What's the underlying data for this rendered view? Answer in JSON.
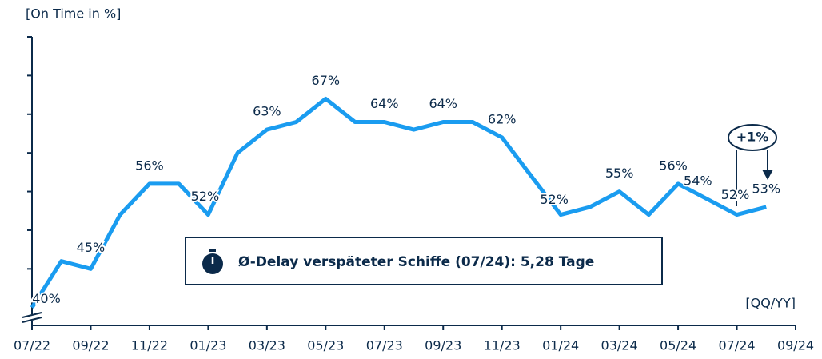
{
  "chart_data": {
    "type": "line",
    "y_axis_label": "[On Time in %]",
    "x_axis_label": "[QQ/YY]",
    "annotations": [
      "Ø-Delay verspäteter Schiffe (07/24): 5,28 Tage",
      "+1%"
    ],
    "categories": [
      "07/22",
      null,
      "09/22",
      null,
      "11/22",
      null,
      "01/23",
      null,
      "03/23",
      null,
      "05/23",
      null,
      "07/23",
      null,
      "09/23",
      null,
      "11/23",
      null,
      "01/24",
      null,
      "03/24",
      null,
      "05/24",
      null,
      "07/24",
      null,
      "09/24"
    ],
    "series": [
      {
        "name": "On Time",
        "color": "#1a9cf0",
        "values": [
          40,
          46,
          45,
          52,
          56,
          56,
          52,
          60,
          63,
          64,
          67,
          64,
          64,
          63,
          64,
          64,
          62,
          57,
          52,
          53,
          55,
          52,
          56,
          54,
          52,
          53,
          null
        ],
        "value_labels": [
          "40%",
          null,
          "45%",
          null,
          "56%",
          null,
          "52%",
          null,
          "63%",
          null,
          "67%",
          null,
          "64%",
          null,
          "64%",
          null,
          "62%",
          null,
          "52%",
          null,
          "55%",
          null,
          "56%",
          "54%",
          "52%",
          "53%",
          null
        ]
      }
    ],
    "ylim": [
      37.7,
      75
    ],
    "yticks": [
      45,
      50,
      55,
      60,
      65,
      70,
      75
    ]
  }
}
